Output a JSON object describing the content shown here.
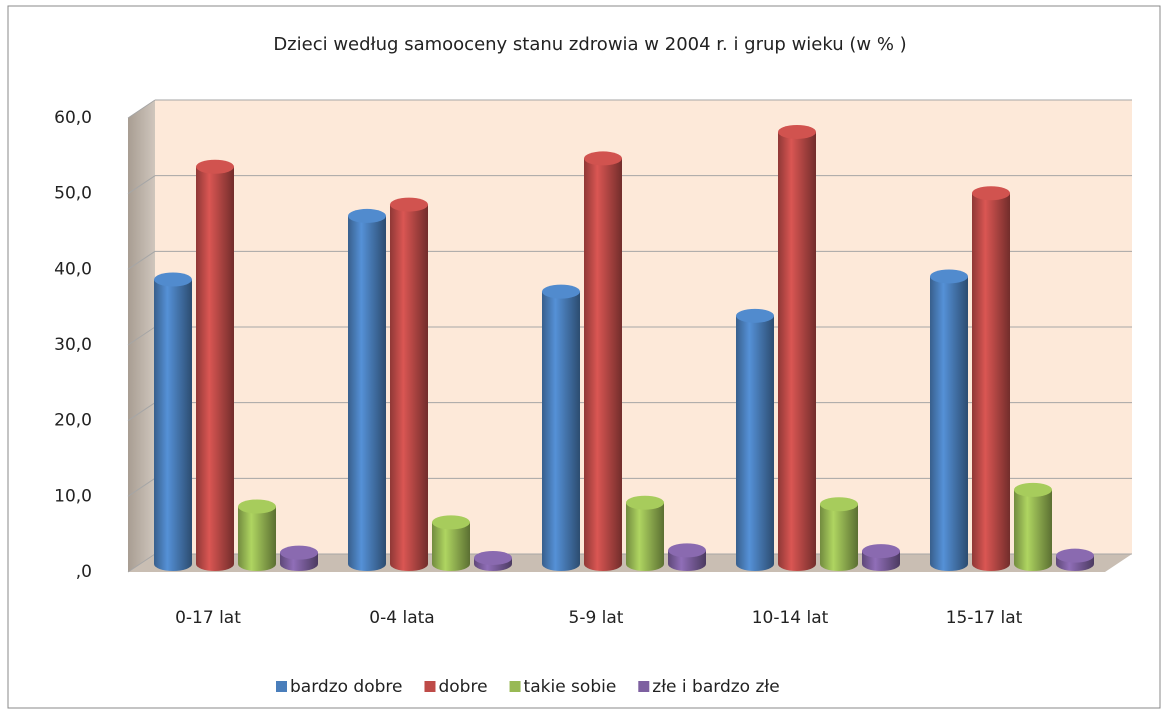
{
  "chart_data": {
    "type": "bar3d",
    "title": "Dzieci według samooceny stanu zdrowia w 2004 r. i grup wieku (w % )",
    "categories": [
      "0-17 lat",
      "0-4 lata",
      "5-9 lat",
      "10-14 lat",
      "15-17 lat"
    ],
    "series": [
      {
        "name": "bardzo dobre",
        "color": "#4a7ebb",
        "values": [
          37.6,
          46.0,
          36.0,
          32.8,
          38.0
        ]
      },
      {
        "name": "dobre",
        "color": "#be4b48",
        "values": [
          52.5,
          47.5,
          53.6,
          57.1,
          49.0
        ]
      },
      {
        "name": "takie sobie",
        "color": "#98b954",
        "values": [
          7.6,
          5.5,
          8.1,
          7.9,
          9.8
        ]
      },
      {
        "name": "złe i bardzo złe",
        "color": "#7d60a0",
        "values": [
          1.5,
          0.8,
          1.8,
          1.7,
          1.1
        ]
      }
    ],
    "ylim": [
      0,
      60
    ],
    "yticks": [
      {
        "value": 0,
        "label": ",0"
      },
      {
        "value": 10,
        "label": "10,0"
      },
      {
        "value": 20,
        "label": "20,0"
      },
      {
        "value": 30,
        "label": "30,0"
      },
      {
        "value": 40,
        "label": "40,0"
      },
      {
        "value": 50,
        "label": "50,0"
      },
      {
        "value": 60,
        "label": "60,0"
      }
    ],
    "grid": true,
    "legend": "bottom"
  }
}
